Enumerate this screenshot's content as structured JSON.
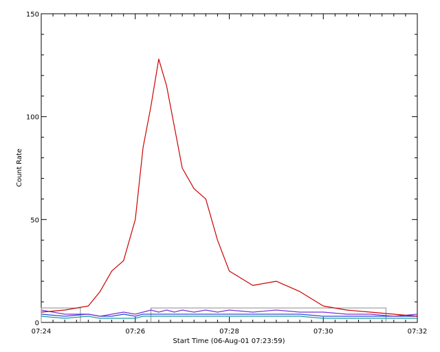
{
  "chart_data": {
    "type": "line",
    "xlabel": "Start Time (06-Aug-01 07:23:59)",
    "ylabel": "Count Rate",
    "xlim": [
      "07:24",
      "07:32"
    ],
    "ylim": [
      0,
      150
    ],
    "x_ticks": [
      "07:24",
      "07:26",
      "07:28",
      "07:30",
      "07:32"
    ],
    "y_ticks": [
      0,
      50,
      100,
      150
    ],
    "grid": false,
    "legend": false,
    "x": [
      "07:24",
      "07:24:30",
      "07:25",
      "07:25:15",
      "07:25:30",
      "07:25:45",
      "07:26",
      "07:26:10",
      "07:26:20",
      "07:26:30",
      "07:26:40",
      "07:26:50",
      "07:27",
      "07:27:15",
      "07:27:30",
      "07:27:45",
      "07:28",
      "07:28:30",
      "07:29",
      "07:29:30",
      "07:30",
      "07:30:30",
      "07:31",
      "07:31:30",
      "07:32"
    ],
    "series": [
      {
        "color": "#cc0000",
        "values": [
          5,
          6,
          8,
          15,
          25,
          30,
          50,
          85,
          105,
          128,
          115,
          95,
          75,
          65,
          60,
          40,
          25,
          18,
          20,
          15,
          8,
          6,
          5,
          4,
          3
        ]
      },
      {
        "color": "#7b2fd6",
        "values": [
          6,
          4,
          4,
          3,
          4,
          5,
          4,
          5,
          6,
          5,
          6,
          5,
          6,
          5,
          6,
          5,
          6,
          5,
          6,
          5,
          5,
          4,
          4,
          3,
          4
        ]
      },
      {
        "color": "#1f4fd6",
        "values": [
          4,
          3,
          4,
          3,
          3,
          4,
          3,
          4,
          4,
          4,
          4,
          4,
          4,
          4,
          4,
          4,
          4,
          4,
          4,
          4,
          3,
          3,
          3,
          3,
          3
        ]
      },
      {
        "color": "#1a9a9a",
        "values": [
          3,
          2,
          3,
          2,
          2,
          2,
          2,
          3,
          3,
          3,
          3,
          3,
          3,
          3,
          3,
          3,
          3,
          3,
          3,
          3,
          2,
          2,
          2,
          2,
          2
        ]
      }
    ],
    "annotations": [
      {
        "type": "bracket",
        "x_start": "07:24",
        "x_end": "07:24:50",
        "y": 7
      },
      {
        "type": "bracket",
        "x_start": "07:26:20",
        "x_end": "07:31:20",
        "y": 7
      }
    ]
  }
}
